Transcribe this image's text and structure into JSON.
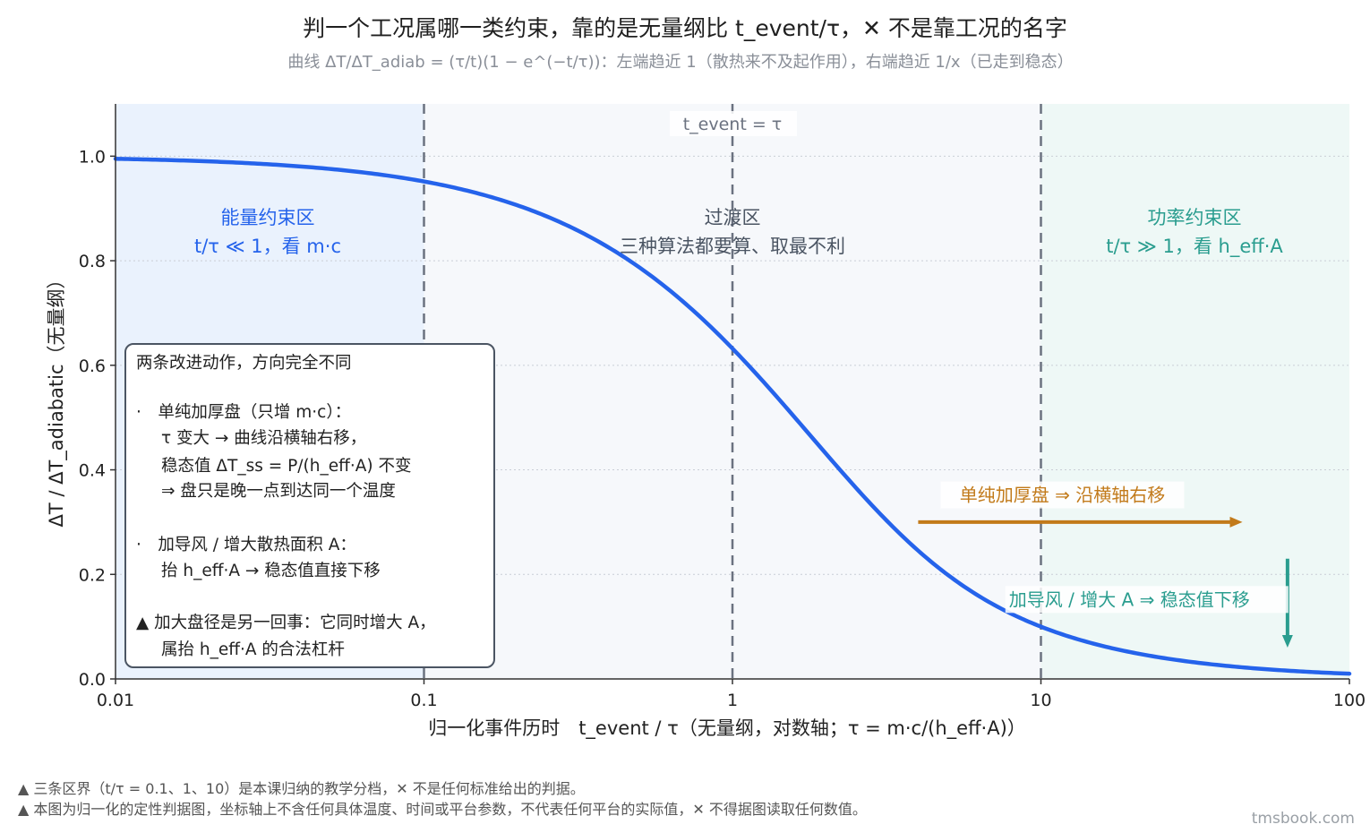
{
  "title": "判一个工况属哪一类约束，靠的是无量纲比 t_event/τ，✕ 不是靠工况的名字",
  "subtitle": "曲线 ΔT/ΔT_adiab = (τ/t)(1 − e^(−t/τ))：左端趋近 1（散热来不及起作用），右端趋近 1/x（已走到稳态）",
  "colors": {
    "curve": "#2563eb",
    "energy": "#2563eb",
    "transition": "#4b5563",
    "power": "#2a9d8f",
    "arrow_right": "#c27a1a",
    "arrow_down": "#2a9d8f"
  },
  "chart_data": {
    "type": "line",
    "x_scale": "log",
    "xlim": [
      0.01,
      100
    ],
    "ylim": [
      0,
      1.1
    ],
    "x_ticks": [
      "0.01",
      "0.1",
      "1",
      "10",
      "100"
    ],
    "y_ticks": [
      "0.0",
      "0.2",
      "0.4",
      "0.6",
      "0.8",
      "1.0"
    ],
    "xlabel": "归一化事件历时　t_event / τ（无量纲，对数轴；τ = m·c/(h_eff·A)）",
    "ylabel": "ΔT / ΔT_adiabatic（无量纲）",
    "grid": "horizontal dotted",
    "series": [
      {
        "x": [
          0.01,
          0.02,
          0.05,
          0.1,
          0.2,
          0.5,
          1,
          2,
          5,
          10,
          20,
          50,
          100
        ],
        "y": [
          0.995,
          0.99,
          0.975,
          0.952,
          0.906,
          0.787,
          0.632,
          0.432,
          0.199,
          0.1,
          0.05,
          0.02,
          0.01
        ]
      }
    ],
    "boundaries": [
      {
        "x": 0.1
      },
      {
        "x": 1,
        "label": "t_event = τ"
      },
      {
        "x": 10
      }
    ],
    "regions": [
      {
        "from": 0.01,
        "to": 0.1,
        "name": "能量约束区",
        "desc": "t/τ ≪ 1，看 m·c"
      },
      {
        "from": 0.1,
        "to": 10,
        "name": "过渡区",
        "desc": "三种算法都要算、取最不利"
      },
      {
        "from": 10,
        "to": 100,
        "name": "功率约束区",
        "desc": "t/τ ≫ 1，看 h_eff·A"
      }
    ],
    "annotations": [
      {
        "text": "单纯加厚盘 ⇒ 沿横轴右移",
        "arrow": "right",
        "x_from": 4,
        "x_to": 45,
        "y": 0.3,
        "label_y": 0.34
      },
      {
        "text": "加导风 / 增大 A ⇒ 稳态值下移",
        "arrow": "down",
        "x": 63,
        "y_from": 0.23,
        "y_to": 0.06,
        "label_x": 11,
        "label_y": 0.14
      }
    ]
  },
  "infobox": {
    "title": "两条改进动作，方向完全不同",
    "item1_line1": "·　单纯加厚盘（只增 m·c）：",
    "item1_line2": "τ 变大 → 曲线沿横轴右移，",
    "item1_line3": "稳态值 ΔT_ss = P/(h_eff·A) 不变",
    "item1_line4": "⇒ 盘只是晚一点到达同一个温度",
    "item2_line1": "·　加导风 / 增大散热面积 A：",
    "item2_line2": "抬 h_eff·A → 稳态值直接下移",
    "item3_line1": "▲ 加大盘径是另一回事：它同时增大 A，",
    "item3_line2": "属抬 h_eff·A 的合法杠杆"
  },
  "footer": {
    "note1": "▲ 三条区界（t/τ = 0.1、1、10）是本课归纳的教学分档，✕ 不是任何标准给出的判据。",
    "note2": "▲ 本图为归一化的定性判据图，坐标轴上不含任何具体温度、时间或平台参数，不代表任何平台的实际值，✕ 不得据图读取任何数值。",
    "brand": "tmsbook.com"
  }
}
